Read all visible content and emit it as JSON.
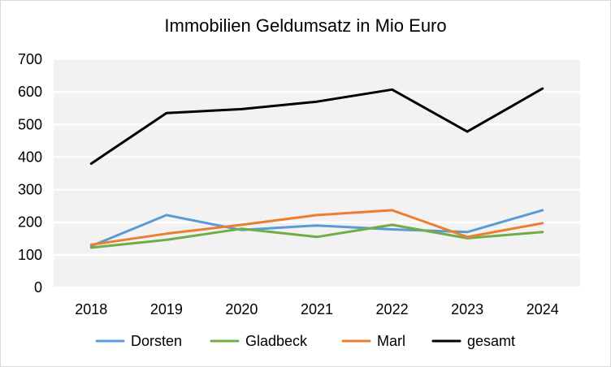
{
  "chart_data": {
    "type": "line",
    "title": "Immobilien Geldumsatz in Mio Euro",
    "xlabel": "",
    "ylabel": "",
    "categories": [
      "2018",
      "2019",
      "2020",
      "2021",
      "2022",
      "2023",
      "2024"
    ],
    "ylim": [
      0,
      700
    ],
    "yticks": [
      "0",
      "100",
      "200",
      "300",
      "400",
      "500",
      "600",
      "700"
    ],
    "grid": true,
    "legend_position": "bottom",
    "plot_background": "#f2f2f2",
    "series": [
      {
        "name": "Dorsten",
        "color": "#5b9bd5",
        "values": [
          127,
          222,
          176,
          190,
          178,
          170,
          237
        ]
      },
      {
        "name": "Gladbeck",
        "color": "#70ad47",
        "values": [
          122,
          146,
          180,
          155,
          192,
          151,
          170
        ]
      },
      {
        "name": "Marl",
        "color": "#ed7d31",
        "values": [
          131,
          165,
          192,
          222,
          237,
          155,
          197
        ]
      },
      {
        "name": "gesamt",
        "color": "#000000",
        "values": [
          380,
          535,
          547,
          570,
          607,
          478,
          610
        ]
      }
    ]
  }
}
